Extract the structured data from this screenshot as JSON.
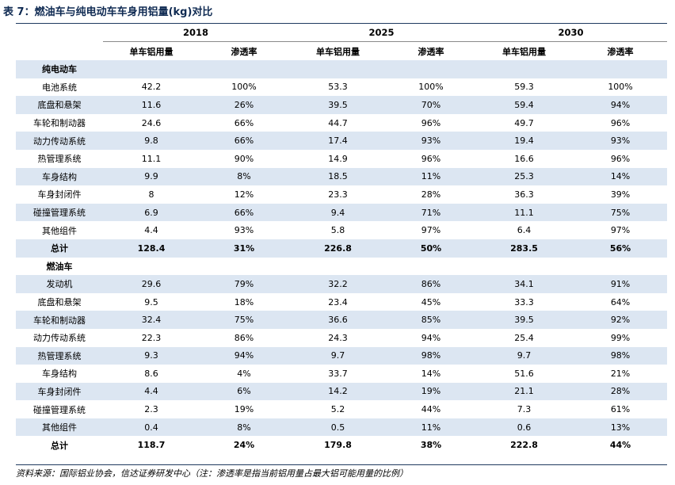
{
  "title": "表 7：燃油车与纯电动车车身用铝量(kg)对比",
  "years": [
    "2018",
    "2025",
    "2030"
  ],
  "subheaders": [
    "单车铝用量",
    "渗透率"
  ],
  "sections": [
    {
      "name": "纯电动车",
      "rows": [
        {
          "label": "电池系统",
          "values": [
            "42.2",
            "100%",
            "53.3",
            "100%",
            "59.3",
            "100%"
          ]
        },
        {
          "label": "底盘和悬架",
          "values": [
            "11.6",
            "26%",
            "39.5",
            "70%",
            "59.4",
            "94%"
          ]
        },
        {
          "label": "车轮和制动器",
          "values": [
            "24.6",
            "66%",
            "44.7",
            "96%",
            "49.7",
            "96%"
          ]
        },
        {
          "label": "动力传动系统",
          "values": [
            "9.8",
            "66%",
            "17.4",
            "93%",
            "19.4",
            "93%"
          ]
        },
        {
          "label": "热管理系统",
          "values": [
            "11.1",
            "90%",
            "14.9",
            "96%",
            "16.6",
            "96%"
          ]
        },
        {
          "label": "车身结构",
          "values": [
            "9.9",
            "8%",
            "18.5",
            "11%",
            "25.3",
            "14%"
          ]
        },
        {
          "label": "车身封闭件",
          "values": [
            "8",
            "12%",
            "23.3",
            "28%",
            "36.3",
            "39%"
          ]
        },
        {
          "label": "碰撞管理系统",
          "values": [
            "6.9",
            "66%",
            "9.4",
            "71%",
            "11.1",
            "75%"
          ]
        },
        {
          "label": "其他组件",
          "values": [
            "4.4",
            "93%",
            "5.8",
            "97%",
            "6.4",
            "97%"
          ]
        }
      ],
      "total": {
        "label": "总计",
        "values": [
          "128.4",
          "31%",
          "226.8",
          "50%",
          "283.5",
          "56%"
        ]
      }
    },
    {
      "name": "燃油车",
      "rows": [
        {
          "label": "发动机",
          "values": [
            "29.6",
            "79%",
            "32.2",
            "86%",
            "34.1",
            "91%"
          ]
        },
        {
          "label": "底盘和悬架",
          "values": [
            "9.5",
            "18%",
            "23.4",
            "45%",
            "33.3",
            "64%"
          ]
        },
        {
          "label": "车轮和制动器",
          "values": [
            "32.4",
            "75%",
            "36.6",
            "85%",
            "39.5",
            "92%"
          ]
        },
        {
          "label": "动力传动系统",
          "values": [
            "22.3",
            "86%",
            "24.3",
            "94%",
            "25.4",
            "99%"
          ]
        },
        {
          "label": "热管理系统",
          "values": [
            "9.3",
            "94%",
            "9.7",
            "98%",
            "9.7",
            "98%"
          ]
        },
        {
          "label": "车身结构",
          "values": [
            "8.6",
            "4%",
            "33.7",
            "14%",
            "51.6",
            "21%"
          ]
        },
        {
          "label": "车身封闭件",
          "values": [
            "4.4",
            "6%",
            "14.2",
            "19%",
            "21.1",
            "28%"
          ]
        },
        {
          "label": "碰撞管理系统",
          "values": [
            "2.3",
            "19%",
            "5.2",
            "44%",
            "7.3",
            "61%"
          ]
        },
        {
          "label": "其他组件",
          "values": [
            "0.4",
            "8%",
            "0.5",
            "11%",
            "0.6",
            "13%"
          ]
        }
      ],
      "total": {
        "label": "总计",
        "values": [
          "118.7",
          "24%",
          "179.8",
          "38%",
          "222.8",
          "44%"
        ]
      }
    }
  ],
  "source_note": "资料来源：国际铝业协会，信达证券研发中心（注：渗透率是指当前铝用量占最大铝可能用量的比例）",
  "colors": {
    "shade": "#dce6f2",
    "title": "#0f2a52",
    "rule": "#1f3a5f"
  }
}
